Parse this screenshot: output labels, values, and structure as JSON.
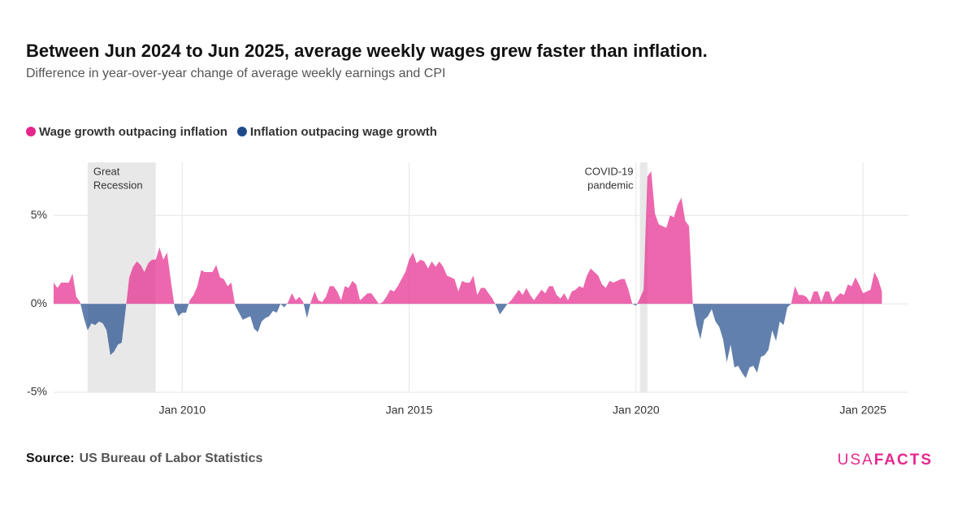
{
  "chart_data": {
    "type": "area",
    "title": "Between Jun 2024 to Jun 2025, average weekly wages grew faster than inflation.",
    "subtitle": "Difference in year-over-year change of average weekly earnings and CPI",
    "legend": [
      {
        "name": "Wage growth outpacing inflation",
        "color": "#e5278c"
      },
      {
        "name": "Inflation outpacing wage growth",
        "color": "#1f4a8a"
      }
    ],
    "source_label": "Source:",
    "source": "US Bureau of Labor Statistics",
    "logo": [
      "USA",
      "FACTS"
    ],
    "logo_color": "#e5278c",
    "shaded": [
      {
        "label": [
          "Great",
          "Recession"
        ],
        "start": "2007-12",
        "end": "2009-06"
      },
      {
        "label": [
          "COVID-19",
          "pandemic"
        ],
        "start": "2020-02",
        "end": "2020-04"
      }
    ],
    "xlim": [
      "2007-03",
      "2026-01"
    ],
    "xticks": [
      {
        "value": "2010-01",
        "label": "Jan 2010"
      },
      {
        "value": "2015-01",
        "label": "Jan 2015"
      },
      {
        "value": "2020-01",
        "label": "Jan 2020"
      },
      {
        "value": "2025-01",
        "label": "Jan 2025"
      }
    ],
    "ylim": [
      -5,
      8
    ],
    "yticks": [
      {
        "value": -5,
        "label": "-5%"
      },
      {
        "value": 0,
        "label": "0%"
      },
      {
        "value": 5,
        "label": "5%"
      }
    ],
    "grid": true,
    "x": [
      "2007-03",
      "2007-04",
      "2007-05",
      "2007-06",
      "2007-07",
      "2007-08",
      "2007-09",
      "2007-10",
      "2007-11",
      "2007-12",
      "2008-01",
      "2008-02",
      "2008-03",
      "2008-04",
      "2008-05",
      "2008-06",
      "2008-07",
      "2008-08",
      "2008-09",
      "2008-10",
      "2008-11",
      "2008-12",
      "2009-01",
      "2009-02",
      "2009-03",
      "2009-04",
      "2009-05",
      "2009-06",
      "2009-07",
      "2009-08",
      "2009-09",
      "2009-10",
      "2009-11",
      "2009-12",
      "2010-01",
      "2010-02",
      "2010-03",
      "2010-04",
      "2010-05",
      "2010-06",
      "2010-07",
      "2010-08",
      "2010-09",
      "2010-10",
      "2010-11",
      "2010-12",
      "2011-01",
      "2011-02",
      "2011-03",
      "2011-04",
      "2011-05",
      "2011-06",
      "2011-07",
      "2011-08",
      "2011-09",
      "2011-10",
      "2011-11",
      "2011-12",
      "2012-01",
      "2012-02",
      "2012-03",
      "2012-04",
      "2012-05",
      "2012-06",
      "2012-07",
      "2012-08",
      "2012-09",
      "2012-10",
      "2012-11",
      "2012-12",
      "2013-01",
      "2013-02",
      "2013-03",
      "2013-04",
      "2013-05",
      "2013-06",
      "2013-07",
      "2013-08",
      "2013-09",
      "2013-10",
      "2013-11",
      "2013-12",
      "2014-01",
      "2014-02",
      "2014-03",
      "2014-04",
      "2014-05",
      "2014-06",
      "2014-07",
      "2014-08",
      "2014-09",
      "2014-10",
      "2014-11",
      "2014-12",
      "2015-01",
      "2015-02",
      "2015-03",
      "2015-04",
      "2015-05",
      "2015-06",
      "2015-07",
      "2015-08",
      "2015-09",
      "2015-10",
      "2015-11",
      "2015-12",
      "2016-01",
      "2016-02",
      "2016-03",
      "2016-04",
      "2016-05",
      "2016-06",
      "2016-07",
      "2016-08",
      "2016-09",
      "2016-10",
      "2016-11",
      "2016-12",
      "2017-01",
      "2017-02",
      "2017-03",
      "2017-04",
      "2017-05",
      "2017-06",
      "2017-07",
      "2017-08",
      "2017-09",
      "2017-10",
      "2017-11",
      "2017-12",
      "2018-01",
      "2018-02",
      "2018-03",
      "2018-04",
      "2018-05",
      "2018-06",
      "2018-07",
      "2018-08",
      "2018-09",
      "2018-10",
      "2018-11",
      "2018-12",
      "2019-01",
      "2019-02",
      "2019-03",
      "2019-04",
      "2019-05",
      "2019-06",
      "2019-07",
      "2019-08",
      "2019-09",
      "2019-10",
      "2019-11",
      "2019-12",
      "2020-01",
      "2020-02",
      "2020-03",
      "2020-04",
      "2020-05",
      "2020-06",
      "2020-07",
      "2020-08",
      "2020-09",
      "2020-10",
      "2020-11",
      "2020-12",
      "2021-01",
      "2021-02",
      "2021-03",
      "2021-04",
      "2021-05",
      "2021-06",
      "2021-07",
      "2021-08",
      "2021-09",
      "2021-10",
      "2021-11",
      "2021-12",
      "2022-01",
      "2022-02",
      "2022-03",
      "2022-04",
      "2022-05",
      "2022-06",
      "2022-07",
      "2022-08",
      "2022-09",
      "2022-10",
      "2022-11",
      "2022-12",
      "2023-01",
      "2023-02",
      "2023-03",
      "2023-04",
      "2023-05",
      "2023-06",
      "2023-07",
      "2023-08",
      "2023-09",
      "2023-10",
      "2023-11",
      "2023-12",
      "2024-01",
      "2024-02",
      "2024-03",
      "2024-04",
      "2024-05",
      "2024-06",
      "2024-07",
      "2024-08",
      "2024-09",
      "2024-10",
      "2024-11",
      "2024-12",
      "2025-01",
      "2025-02",
      "2025-03",
      "2025-04",
      "2025-05",
      "2025-06"
    ],
    "values": [
      1.2,
      0.9,
      1.2,
      1.2,
      1.2,
      1.7,
      0.4,
      0.1,
      -0.8,
      -1.5,
      -1.1,
      -1.2,
      -1.0,
      -1.1,
      -1.5,
      -2.9,
      -2.7,
      -2.3,
      -2.2,
      -0.4,
      1.5,
      2.1,
      2.4,
      2.2,
      1.8,
      2.3,
      2.5,
      2.5,
      3.2,
      2.5,
      2.9,
      1.3,
      -0.2,
      -0.7,
      -0.5,
      -0.5,
      0.2,
      0.5,
      1.0,
      1.9,
      1.8,
      1.8,
      1.8,
      2.2,
      1.5,
      1.4,
      1.0,
      1.2,
      -0.1,
      -0.5,
      -0.9,
      -0.8,
      -0.7,
      -1.4,
      -1.6,
      -1.0,
      -0.8,
      -0.7,
      -0.4,
      -0.5,
      0.0,
      -0.2,
      0.1,
      0.6,
      0.2,
      0.4,
      0.1,
      -0.8,
      0.1,
      0.7,
      0.2,
      0.1,
      0.4,
      1.0,
      1.0,
      0.7,
      0.2,
      1.0,
      0.9,
      1.3,
      1.1,
      0.2,
      0.4,
      0.6,
      0.6,
      0.3,
      0.0,
      0.1,
      0.4,
      0.8,
      0.7,
      1.0,
      1.4,
      1.8,
      2.5,
      2.9,
      2.3,
      2.5,
      2.4,
      2.0,
      2.4,
      2.1,
      2.4,
      2.1,
      1.6,
      1.5,
      1.4,
      0.7,
      1.3,
      1.2,
      1.2,
      1.6,
      0.5,
      0.9,
      0.9,
      0.6,
      0.3,
      -0.1,
      -0.6,
      -0.3,
      0.0,
      0.2,
      0.5,
      0.8,
      0.5,
      0.9,
      0.5,
      0.2,
      0.5,
      0.8,
      0.6,
      1.0,
      1.0,
      0.5,
      0.3,
      0.6,
      0.2,
      0.7,
      0.8,
      1.0,
      0.9,
      1.6,
      2.0,
      1.8,
      1.6,
      1.1,
      0.9,
      1.3,
      1.2,
      1.3,
      1.4,
      1.4,
      0.8,
      0.0,
      -0.1,
      0.3,
      0.8,
      7.2,
      7.5,
      5.1,
      4.5,
      4.4,
      4.3,
      5.0,
      4.9,
      5.6,
      6.0,
      4.7,
      4.4,
      0.0,
      -1.2,
      -2.0,
      -0.9,
      -0.7,
      -0.3,
      -1.0,
      -1.3,
      -2.0,
      -3.3,
      -2.3,
      -3.6,
      -3.5,
      -3.9,
      -4.2,
      -3.6,
      -3.5,
      -3.9,
      -3.0,
      -2.9,
      -2.6,
      -1.5,
      -2.1,
      -1.0,
      -1.2,
      -0.2,
      0.0,
      1.0,
      0.5,
      0.5,
      0.4,
      0.1,
      0.7,
      0.7,
      0.1,
      0.7,
      0.7,
      0.1,
      0.4,
      0.6,
      0.5,
      1.1,
      1.0,
      1.5,
      1.1,
      0.6,
      0.7,
      0.8,
      1.8,
      1.4,
      0.7
    ]
  }
}
